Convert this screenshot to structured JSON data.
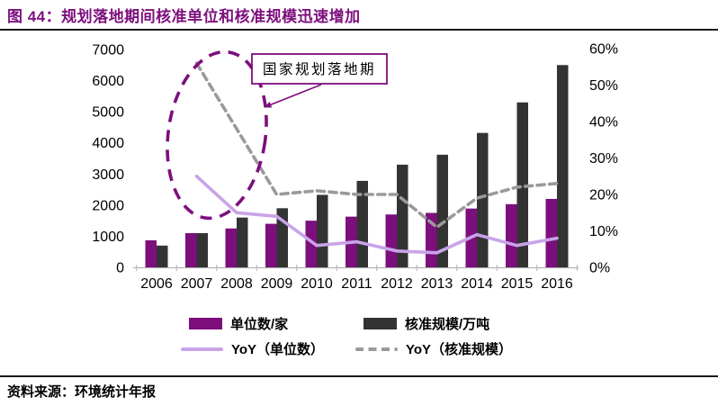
{
  "header": {
    "title": "图 44：规划落地期间核准单位和核准规模迅速增加"
  },
  "annotation": {
    "label": "国家规划落地期"
  },
  "source": {
    "text": "资料来源：环境统计年报"
  },
  "colors": {
    "purple": "#7d0f7d",
    "dark": "#333333",
    "lavender": "#c9a3e8",
    "gray": "#9a9a9a",
    "axis_line": "#b3b3b3",
    "text": "#000000"
  },
  "chart_data": {
    "type": "bar",
    "title": "规划落地期间核准单位和核准规模迅速增加",
    "categories": [
      "2006",
      "2007",
      "2008",
      "2009",
      "2010",
      "2011",
      "2012",
      "2013",
      "2014",
      "2015",
      "2016"
    ],
    "series": [
      {
        "name": "单位数/家",
        "type": "bar",
        "axis": "left",
        "color": "purple",
        "values": [
          870,
          1100,
          1250,
          1400,
          1500,
          1630,
          1700,
          1750,
          1890,
          2030,
          2200
        ]
      },
      {
        "name": "核准规模/万吨",
        "type": "bar",
        "axis": "left",
        "color": "dark",
        "values": [
          700,
          1100,
          1600,
          1900,
          2330,
          2780,
          3300,
          3620,
          4320,
          5300,
          6500
        ]
      },
      {
        "name": "YoY（单位数）",
        "type": "line",
        "axis": "right",
        "color": "lavender",
        "dashed": false,
        "values": [
          null,
          25,
          15,
          14,
          6,
          7,
          4.5,
          4,
          9,
          6,
          8
        ]
      },
      {
        "name": "YoY（核准规模）",
        "type": "line",
        "axis": "right",
        "color": "gray",
        "dashed": true,
        "values": [
          null,
          56,
          38,
          20,
          21,
          20,
          20,
          11,
          19,
          22,
          23
        ]
      }
    ],
    "left_axis": {
      "min": 0,
      "max": 7000,
      "step": 1000,
      "suffix": ""
    },
    "right_axis": {
      "min": 0,
      "max": 60,
      "step": 10,
      "suffix": "%"
    },
    "legend_position": "bottom",
    "grid": false
  }
}
